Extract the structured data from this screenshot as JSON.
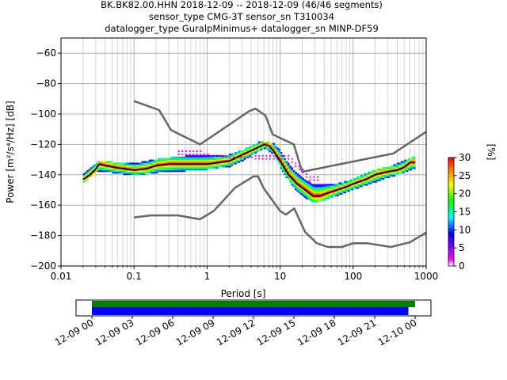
{
  "title_lines": [
    "BK.BK82.00.HHN   2018-12-09 -- 2018-12-09  (46/46 segments)",
    "sensor_type CMG-3T sensor_sn T310034",
    "datalogger_type GuralpMinimus+ datalogger_sn MINP-DF59"
  ],
  "colorbar": {
    "label": "[%]",
    "ticks": [
      "0",
      "5",
      "10",
      "15",
      "20",
      "25",
      "30"
    ],
    "range": [
      0,
      30
    ],
    "colormap": [
      "#ffffff",
      "#ff00ff",
      "#0000ff",
      "#00ffff",
      "#00ff00",
      "#ffff00",
      "#ff8000",
      "#ff0000"
    ]
  },
  "coverage": {
    "tick_labels": [
      "12-09 00",
      "12-09 03",
      "12-09 06",
      "12-09 09",
      "12-09 12",
      "12-09 15",
      "12-09 18",
      "12-09 21",
      "12-10 00"
    ],
    "green_bar": {
      "start_hour": 0.0,
      "end_hour": 24.0,
      "color": "#008000"
    },
    "blue_bar": {
      "start_hour": 0.0,
      "end_hour": 23.5,
      "color": "#0000ff"
    }
  },
  "chart_data": {
    "type": "heatmap",
    "xlabel": "Period [s]",
    "ylabel": "Power [m²/s⁴/Hz] [dB]",
    "xscale": "log",
    "xlim": [
      0.01,
      1000
    ],
    "ylim": [
      -200,
      -50
    ],
    "x_tick_labels": [
      "0.01",
      "0.1",
      "1",
      "10",
      "100",
      "1000"
    ],
    "y_tick_labels": [
      "−200",
      "−180",
      "−160",
      "−140",
      "−120",
      "−100",
      "−80",
      "−60"
    ],
    "y_ticks": [
      -200,
      -180,
      -160,
      -140,
      -120,
      -100,
      -80,
      -60
    ],
    "x_ticks": [
      0.01,
      0.1,
      1,
      10,
      100,
      1000
    ],
    "grid": true,
    "nhnm": {
      "name": "NHNM",
      "color": "#666666",
      "points": [
        [
          0.1,
          -91.5
        ],
        [
          0.22,
          -97.4
        ],
        [
          0.32,
          -110.5
        ],
        [
          0.8,
          -120
        ],
        [
          3.8,
          -98
        ],
        [
          4.6,
          -96.5
        ],
        [
          6.3,
          -101
        ],
        [
          7.9,
          -113.5
        ],
        [
          15.4,
          -120
        ],
        [
          20,
          -138
        ],
        [
          354.8,
          -126
        ],
        [
          10000,
          -80
        ]
      ]
    },
    "nlnm": {
      "name": "NLNM",
      "color": "#666666",
      "points": [
        [
          0.1,
          -168
        ],
        [
          0.17,
          -166.7
        ],
        [
          0.4,
          -166.7
        ],
        [
          0.8,
          -169.2
        ],
        [
          1.24,
          -163.7
        ],
        [
          2.4,
          -148.6
        ],
        [
          4.3,
          -141.1
        ],
        [
          5.0,
          -141.1
        ],
        [
          6.0,
          -149
        ],
        [
          10.0,
          -163.8
        ],
        [
          12.0,
          -166.2
        ],
        [
          15.6,
          -162.1
        ],
        [
          21.9,
          -177.5
        ],
        [
          31.6,
          -185
        ],
        [
          45,
          -187.5
        ],
        [
          70,
          -187.5
        ],
        [
          101,
          -185
        ],
        [
          154,
          -185
        ],
        [
          328,
          -187.5
        ],
        [
          600,
          -184.4
        ],
        [
          1000,
          -178
        ],
        [
          10000,
          -151
        ]
      ]
    },
    "mode_curve": {
      "name": "mode",
      "color": "#000000",
      "points": [
        [
          0.02,
          -143
        ],
        [
          0.025,
          -140
        ],
        [
          0.03,
          -136
        ],
        [
          0.033,
          -133
        ],
        [
          0.04,
          -134
        ],
        [
          0.06,
          -135.5
        ],
        [
          0.1,
          -137
        ],
        [
          0.15,
          -136
        ],
        [
          0.2,
          -134
        ],
        [
          0.3,
          -133
        ],
        [
          0.5,
          -133
        ],
        [
          1.0,
          -133
        ],
        [
          2.0,
          -131
        ],
        [
          3.0,
          -127
        ],
        [
          5.0,
          -122
        ],
        [
          6.0,
          -120
        ],
        [
          7.0,
          -121
        ],
        [
          8.0,
          -124
        ],
        [
          10.0,
          -131
        ],
        [
          13.0,
          -140
        ],
        [
          17.0,
          -146
        ],
        [
          22.0,
          -150
        ],
        [
          28.0,
          -154
        ],
        [
          35.0,
          -154
        ],
        [
          45.0,
          -152
        ],
        [
          60.0,
          -150
        ],
        [
          80.0,
          -148
        ],
        [
          100.0,
          -146
        ],
        [
          150.0,
          -143
        ],
        [
          200.0,
          -140
        ],
        [
          300.0,
          -138
        ],
        [
          400.0,
          -137
        ],
        [
          500.0,
          -135
        ],
        [
          600.0,
          -132
        ],
        [
          700.0,
          -132
        ]
      ]
    },
    "spread_upper": [
      [
        0.02,
        -140
      ],
      [
        0.03,
        -132
      ],
      [
        0.05,
        -132
      ],
      [
        0.1,
        -133
      ],
      [
        0.2,
        -130
      ],
      [
        0.5,
        -128
      ],
      [
        1.0,
        -128
      ],
      [
        2.0,
        -127
      ],
      [
        3.0,
        -124
      ],
      [
        5.0,
        -119
      ],
      [
        6.0,
        -118
      ],
      [
        8.0,
        -120
      ],
      [
        10.0,
        -125
      ],
      [
        13.0,
        -134
      ],
      [
        17.0,
        -140
      ],
      [
        22.0,
        -144
      ],
      [
        28.0,
        -147
      ],
      [
        40.0,
        -147
      ],
      [
        60.0,
        -146
      ],
      [
        100.0,
        -143
      ],
      [
        200.0,
        -137
      ],
      [
        300.0,
        -135
      ],
      [
        500.0,
        -131
      ],
      [
        700.0,
        -128
      ]
    ],
    "spread_lower": [
      [
        0.02,
        -145
      ],
      [
        0.03,
        -138
      ],
      [
        0.05,
        -139
      ],
      [
        0.1,
        -141
      ],
      [
        0.2,
        -139
      ],
      [
        0.5,
        -138
      ],
      [
        1.0,
        -137
      ],
      [
        2.0,
        -135
      ],
      [
        3.0,
        -131
      ],
      [
        5.0,
        -125
      ],
      [
        6.0,
        -123
      ],
      [
        8.0,
        -127
      ],
      [
        10.0,
        -136
      ],
      [
        13.0,
        -145
      ],
      [
        17.0,
        -152
      ],
      [
        22.0,
        -156
      ],
      [
        28.0,
        -159
      ],
      [
        40.0,
        -157
      ],
      [
        60.0,
        -154
      ],
      [
        100.0,
        -150
      ],
      [
        200.0,
        -145
      ],
      [
        300.0,
        -142
      ],
      [
        500.0,
        -139
      ],
      [
        700.0,
        -136
      ]
    ],
    "sparse_upper": [
      [
        0.4,
        -125
      ],
      [
        0.8,
        -125
      ],
      [
        1.5,
        -127
      ],
      [
        13,
        -128
      ],
      [
        18,
        -134
      ],
      [
        25,
        -140
      ],
      [
        35,
        -141
      ]
    ],
    "sparse_lower": [
      [
        0.4,
        -127
      ],
      [
        0.8,
        -127
      ],
      [
        1.5,
        -129
      ],
      [
        13,
        -131
      ],
      [
        18,
        -138
      ],
      [
        25,
        -144
      ],
      [
        35,
        -145
      ]
    ]
  }
}
